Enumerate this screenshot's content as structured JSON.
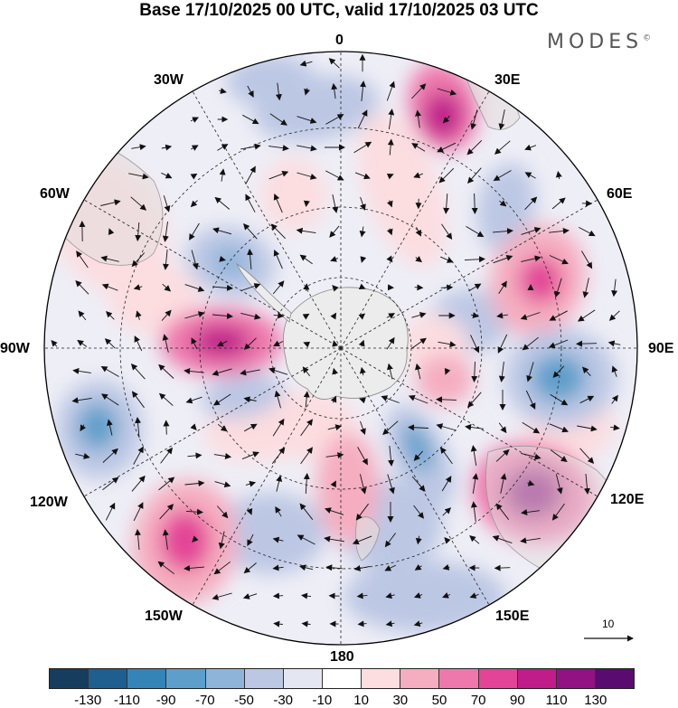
{
  "title": "Base 17/10/2025 00 UTC, valid 17/10/2025 03 UTC",
  "brand": "MODES",
  "brand_mark": "©",
  "longitude_labels": {
    "lon_0": "0",
    "lon_30e": "30E",
    "lon_60e": "60E",
    "lon_90e": "90E",
    "lon_120e": "120E",
    "lon_150e": "150E",
    "lon_180": "180",
    "lon_150w": "150W",
    "lon_120w": "120W",
    "lon_90w": "90W",
    "lon_60w": "60W",
    "lon_30w": "30W"
  },
  "reference_vector_label": "10",
  "colorbar": {
    "colors": [
      "#163d5e",
      "#1e5f8f",
      "#3584b8",
      "#5d9fca",
      "#8fb4da",
      "#bcc7e4",
      "#e4e6f1",
      "#ffffff",
      "#fcdde0",
      "#f5adc0",
      "#ee78ac",
      "#e34497",
      "#c01c8a",
      "#921283",
      "#5a0b70"
    ],
    "labels": [
      "-130",
      "-110",
      "-90",
      "-70",
      "-50",
      "-30",
      "-10",
      "10",
      "30",
      "50",
      "70",
      "90",
      "110",
      "130"
    ]
  },
  "map": {
    "projection": "south-polar-stereographic",
    "field": "anomaly",
    "anomalies": [
      {
        "name": "anomaly-positive-30e",
        "value": 95
      },
      {
        "name": "anomaly-positive-60e",
        "value": 85
      },
      {
        "name": "anomaly-negative-90e",
        "value": -90
      },
      {
        "name": "anomaly-positive-120e",
        "value": 115
      },
      {
        "name": "anomaly-positive-100e",
        "value": 70
      },
      {
        "name": "anomaly-negative-150e",
        "value": -80
      },
      {
        "name": "anomaly-positive-170e",
        "value": 55
      },
      {
        "name": "anomaly-positive-150w",
        "value": 75
      },
      {
        "name": "anomaly-negative-115w",
        "value": -75
      },
      {
        "name": "anomaly-negative-105w",
        "value": -55
      },
      {
        "name": "anomaly-positive-90w",
        "value": 105
      },
      {
        "name": "anomaly-negative-60w",
        "value": -65
      },
      {
        "name": "anomaly-positive-60w",
        "value": 45
      }
    ]
  }
}
